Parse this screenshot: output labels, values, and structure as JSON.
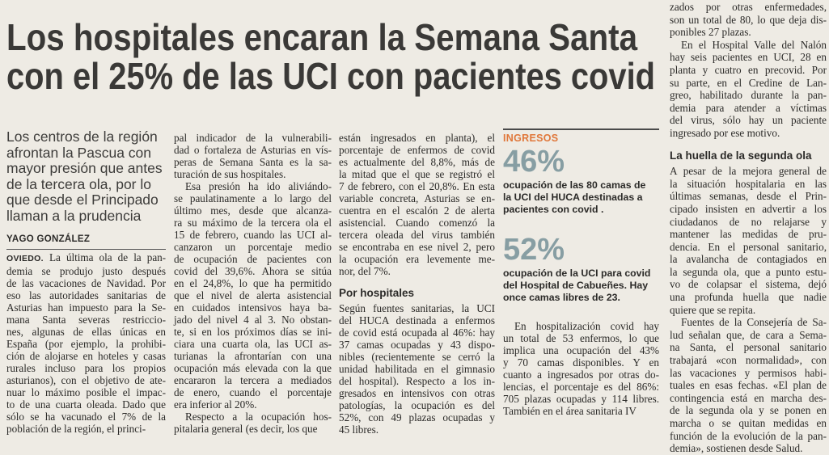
{
  "headline": {
    "lines": [
      "Los hospitales encaran la Semana Santa",
      "con el 25% de las UCI con pacientes covid"
    ]
  },
  "subtitle": {
    "lines": [
      "Los centros de la región",
      "afrontan la Pascua con",
      "mayor presión que antes",
      "de la tercera ola, por lo",
      "que desde el Principado",
      "llaman a la prudencia"
    ]
  },
  "byline": "YAGO GONZÁLEZ",
  "columns": [
    {
      "blocks": [
        {
          "dateline": "OVIEDO.",
          "lines": [
            "La última ola de la pan-",
            "demia se produjo justo después",
            "de las vacaciones de Navidad. Por",
            "eso las autoridades sanitarias de",
            "Asturias han impuesto para la Se-",
            "mana Santa severas restriccio-",
            "nes, algunas de ellas únicas en",
            "España (por ejemplo, la prohibi-",
            "ción de alojarse en hoteles y casas",
            "rurales incluso para los propios",
            "asturianos), con el objetivo de ate-",
            "nuar lo máximo posible el impac-",
            "to de una cuarta oleada. Dado que",
            "sólo se ha vacunado el 7% de la",
            "población de la región, el princi-"
          ]
        }
      ]
    },
    {
      "blocks": [
        {
          "lines": [
            "pal indicador de la vulnerabili-",
            "dad o fortaleza de Asturias en vís-",
            "peras de Semana Santa es la sa-",
            "turación de sus hospitales."
          ]
        },
        {
          "lines": [
            "Esa presión ha ido aliviándo-",
            "se paulatinamente a lo largo del",
            "último mes, desde que alcanza-",
            "ra su máximo de la tercera ola el",
            "15 de febrero, cuando las UCI al-",
            "canzaron un porcentaje medio",
            "de ocupación de pacientes con",
            "covid del 39,6%. Ahora se sitúa",
            "en el 24,8%, lo que ha permitido",
            "que el nivel de alerta asistencial",
            "en cuidados intensivos haya ba-",
            "jado del nivel 4 al 3. No obstan-",
            "te, si en los próximos días se ini-",
            "ciara una cuarta ola, las UCI as-",
            "turianas la afrontarían con una",
            "ocupación más elevada con la que",
            "encararon la tercera a mediados",
            "de enero, cuando el porcentaje",
            "era inferior al 20%."
          ]
        },
        {
          "lines": [
            "Respecto a la ocupación hos-",
            "pitalaria general (es decir, los que"
          ]
        }
      ]
    },
    {
      "blocks": [
        {
          "lines": [
            "están ingresados en planta), el",
            "porcentaje de enfermos de covid",
            "es actualmente del 8,8%, más de",
            "la mitad que el que se registró el",
            "7 de febrero, con el 20,8%. En esta",
            "variable concreta, Asturias se en-",
            "cuentra en el escalón 2 de alerta",
            "asistencial. Cuando comenzó la",
            "tercera oleada del virus también",
            "se encontraba en ese nivel 2, pero",
            "la ocupación era levemente me-",
            "nor, del 7%."
          ]
        },
        {
          "heading": "Por hospitales"
        },
        {
          "lines": [
            "Según fuentes sanitarias, la UCI",
            "del HUCA destinada a enfermos",
            "de covid está ocupada al 46%: hay",
            "37 camas ocupadas y 43 dispo-",
            "nibles (recientemente se cerró la",
            "unidad habilitada en el gimnasio",
            "del hospital). Respecto a los in-",
            "gresados en intensivos con otras",
            "patologías, la ocupación es del",
            "52%, con 49 plazas ocupadas y",
            "45 libres."
          ]
        }
      ]
    },
    {
      "blocks": [
        {
          "lines": [
            "zados por otras enfermedades,",
            "son un total de 80, lo que deja dis-",
            "ponibles 27 plazas."
          ]
        },
        {
          "lines": [
            "En el Hospital Valle del Nalón",
            "hay seis pacientes en UCI, 28 en",
            "planta y cuatro en precovid. Por",
            "su parte, en el Credine de Lan-",
            "greo, habilitado durante la pan-",
            "demia para atender a víctimas",
            "del virus, sólo hay un paciente",
            "ingresado por ese motivo."
          ]
        },
        {
          "heading": "La huella de la segunda ola"
        },
        {
          "lines": [
            "A pesar de la mejora general de",
            "la situación hospitalaria en las",
            "últimas semanas, desde el Prin-",
            "cipado insisten en advertir a los",
            "ciudadanos de no relajarse y",
            "mantener las medidas de pru-",
            "dencia. En el personal sanitario,",
            "la avalancha de contagiados en",
            "la segunda ola, que a punto estu-",
            "vo de colapsar el sistema, dejó",
            "una profunda huella que nadie",
            "quiere que se repita."
          ]
        },
        {
          "lines": [
            "Fuentes de la Consejería de Sa-",
            "lud señalan que, de cara a Sema-",
            "na Santa, el personal sanitario",
            "trabajará «con normalidad», con",
            "las vacaciones y permisos habi-",
            "tuales en esas fechas. «El plan de",
            "contingencia está en marcha des-",
            "de la segunda ola y se ponen en",
            "marcha o se quitan medidas en",
            "función de la evolución de la pan-",
            "demia», sostienen desde Salud."
          ]
        }
      ]
    }
  ],
  "sidebar": {
    "label": "INGRESOS",
    "stats": [
      {
        "figure": "46%",
        "text": [
          "ocupación de las 80 camas de",
          "la UCI del HUCA destinadas a",
          "pacientes con covid ."
        ]
      },
      {
        "figure": "52%",
        "text": [
          "ocupación de la UCI para covid",
          "del Hospital de Cabueñes. Hay",
          "once camas libres de 23."
        ]
      }
    ],
    "body": [
      "En hospitalización covid hay",
      "un total de 53 enfermos, lo que",
      "implica una ocupación del 43%",
      "y 70 camas disponibles. Y en",
      "cuanto a ingresados por otras do-",
      "lencias, el porcentaje es del 86%:",
      "705 plazas ocupadas y 114 libres.",
      "También en el área sanitaria IV"
    ]
  }
}
